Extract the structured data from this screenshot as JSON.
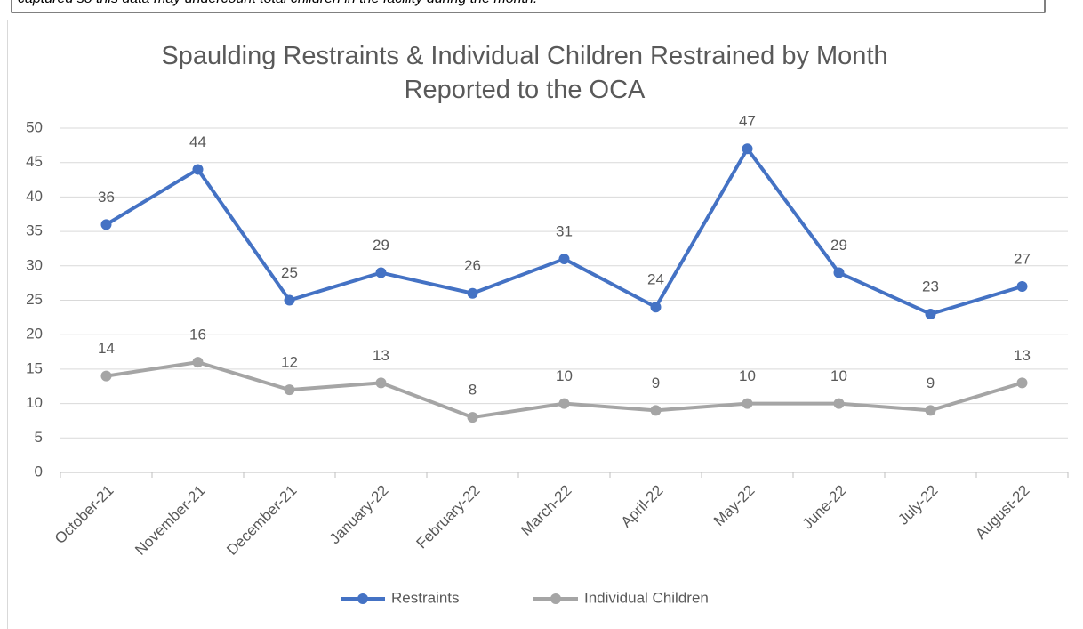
{
  "header_note": "captured so this data may undercount total children in the facility during the month.",
  "chart_data": {
    "type": "line",
    "title": "Spaulding Restraints & Individual Children Restrained by Month Reported to the OCA",
    "categories": [
      "October-21",
      "November-21",
      "December-21",
      "January-22",
      "February-22",
      "March-22",
      "April-22",
      "May-22",
      "June-22",
      "July-22",
      "August-22"
    ],
    "series": [
      {
        "name": "Restraints",
        "color": "#4472c4",
        "values": [
          36,
          44,
          25,
          29,
          26,
          31,
          24,
          47,
          29,
          23,
          27
        ]
      },
      {
        "name": "Individual Children",
        "color": "#a5a5a5",
        "values": [
          14,
          16,
          12,
          13,
          8,
          10,
          9,
          10,
          10,
          9,
          13
        ]
      }
    ],
    "ylim": [
      0,
      50
    ],
    "yticks": [
      0,
      5,
      10,
      15,
      20,
      25,
      30,
      35,
      40,
      45,
      50
    ],
    "grid": true,
    "legend": "bottom",
    "data_labels": true
  }
}
